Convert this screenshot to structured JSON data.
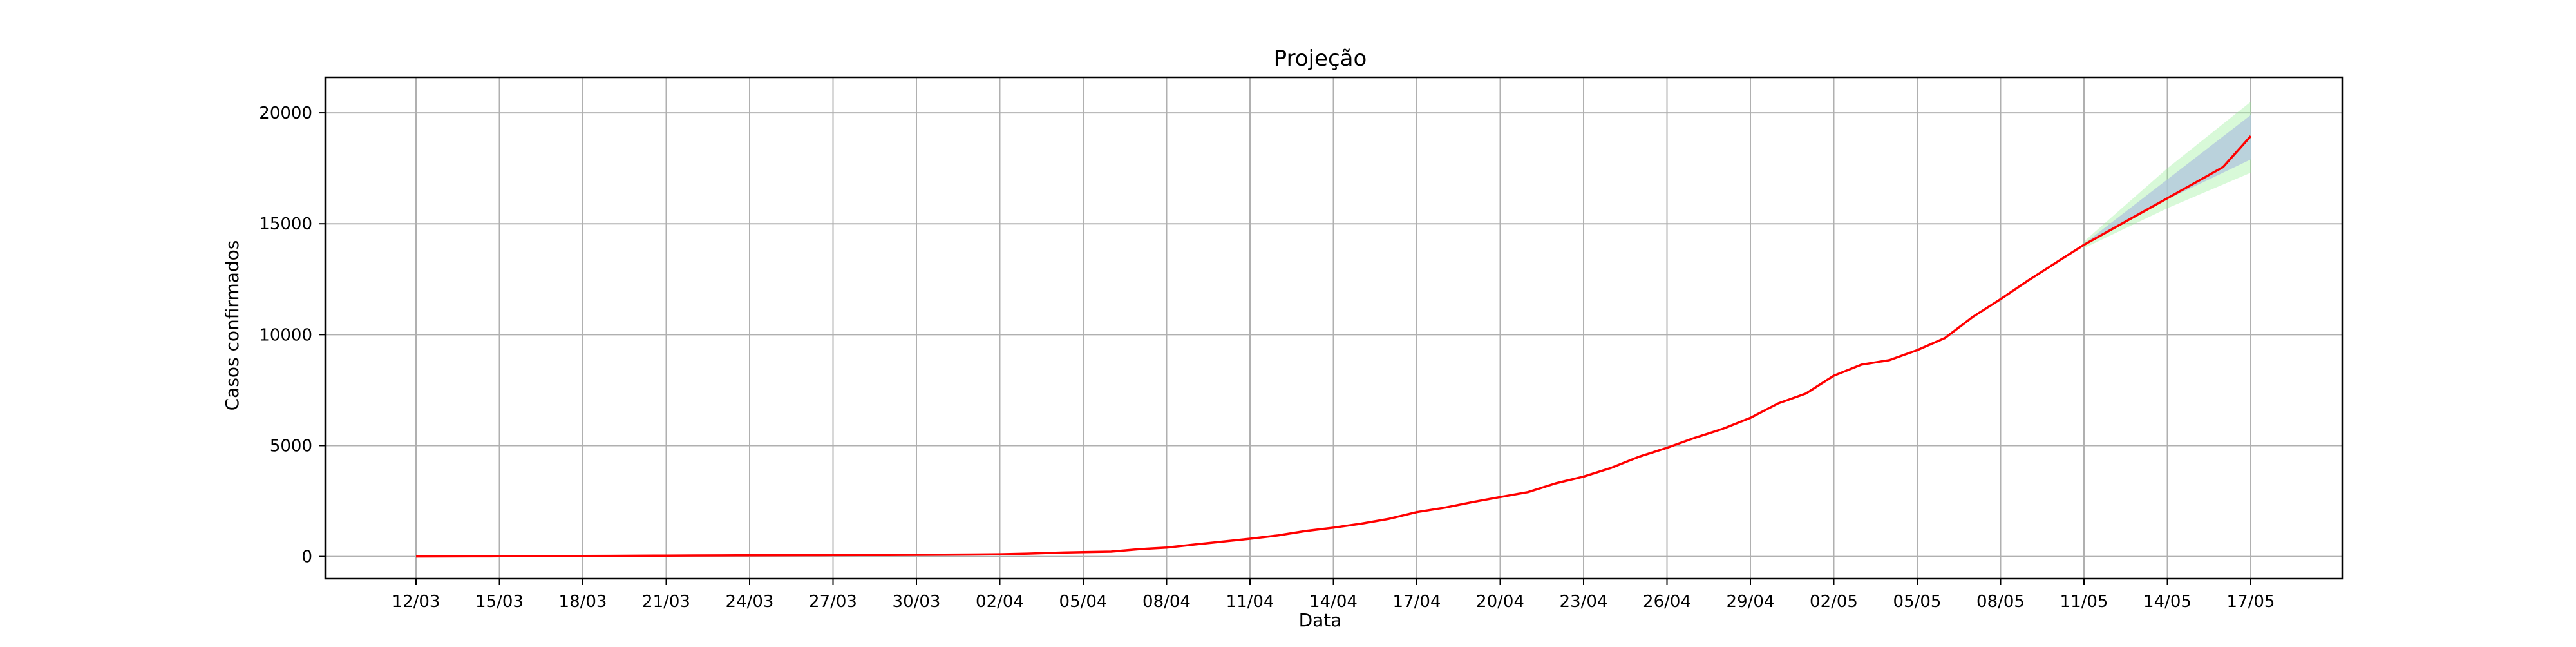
{
  "chart_data": {
    "type": "line",
    "title": "Projeção",
    "xlabel": "Data",
    "ylabel": "Casos confirmados",
    "x_tick_labels": [
      "12/03",
      "15/03",
      "18/03",
      "21/03",
      "24/03",
      "27/03",
      "30/03",
      "02/04",
      "05/04",
      "08/04",
      "11/04",
      "14/04",
      "17/04",
      "20/04",
      "23/04",
      "26/04",
      "29/04",
      "02/05",
      "05/05",
      "08/05",
      "11/05",
      "14/05",
      "17/05"
    ],
    "y_ticks": [
      0,
      5000,
      10000,
      15000,
      20000
    ],
    "y_tick_labels": [
      "0",
      "5000",
      "10000",
      "15000",
      "20000"
    ],
    "ylim": [
      -1000,
      21600
    ],
    "grid": true,
    "colors": {
      "series": "#ff0000",
      "inner_band": "#b0c4de",
      "outer_band": "#90ee90",
      "grid": "#b0b0b0"
    },
    "series": [
      {
        "dates": [
          "12/03",
          "13/03",
          "14/03",
          "15/03",
          "16/03",
          "17/03",
          "18/03",
          "19/03",
          "20/03",
          "21/03",
          "22/03",
          "23/03",
          "24/03",
          "25/03",
          "26/03",
          "27/03",
          "28/03",
          "29/03",
          "30/03",
          "31/03",
          "01/04",
          "02/04",
          "03/04",
          "04/04",
          "05/04",
          "06/04",
          "07/04",
          "08/04",
          "09/04",
          "10/04",
          "11/04",
          "12/04",
          "13/04",
          "14/04",
          "15/04",
          "16/04",
          "17/04",
          "18/04",
          "19/04",
          "20/04",
          "21/04",
          "22/04",
          "23/04",
          "24/04",
          "25/04",
          "26/04",
          "27/04",
          "28/04",
          "29/04",
          "30/04",
          "01/05",
          "02/05",
          "03/05",
          "04/05",
          "05/05",
          "06/05",
          "07/05",
          "08/05",
          "09/05",
          "10/05",
          "11/05",
          "12/05",
          "13/05",
          "14/05",
          "15/05",
          "16/05",
          "17/05"
        ],
        "values": [
          0,
          2,
          5,
          8,
          12,
          17,
          22,
          28,
          34,
          40,
          46,
          50,
          55,
          58,
          60,
          62,
          65,
          70,
          75,
          82,
          90,
          100,
          130,
          170,
          200,
          220,
          330,
          400,
          540,
          670,
          800,
          950,
          1150,
          1300,
          1480,
          1700,
          2000,
          2200,
          2450,
          2680,
          2900,
          3300,
          3600,
          4000,
          4500,
          4900,
          5350,
          5750,
          6250,
          6900,
          7350,
          8150,
          8650,
          8850,
          9300,
          9850,
          10800,
          11600,
          12450,
          13250,
          14050,
          14750,
          15450,
          16150,
          16850,
          17550,
          18950
        ]
      }
    ],
    "projection_band": {
      "dates": [
        "11/05",
        "14/05",
        "17/05"
      ],
      "inner_lower": [
        14000,
        16100,
        17900
      ],
      "inner_upper": [
        14100,
        17000,
        19900
      ],
      "outer_lower": [
        13900,
        15700,
        17300
      ],
      "outer_upper": [
        14200,
        17500,
        20500
      ]
    }
  }
}
